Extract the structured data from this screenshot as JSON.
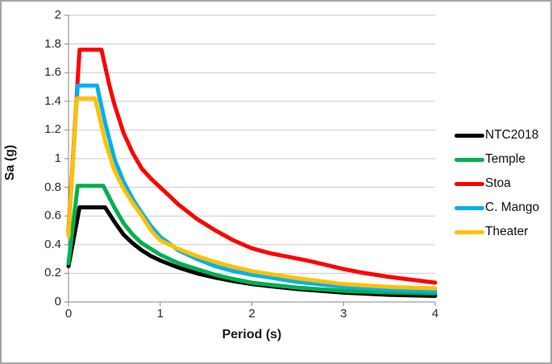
{
  "figure": {
    "background": "#ffffff",
    "border_color": "#a6a6a6",
    "plot_colors": {
      "gridline": "#c9c9c9",
      "axis": "#868686",
      "tick": "#868686",
      "text": "#2b2b2b"
    }
  },
  "chart_data": {
    "type": "line",
    "title": "",
    "xlabel": "Period (s)",
    "ylabel": "Sa (g)",
    "xlim": [
      0,
      4
    ],
    "ylim": [
      0,
      2
    ],
    "x_ticks": [
      "0",
      "1",
      "2",
      "3",
      "4"
    ],
    "x_tick_values": [
      0,
      1,
      2,
      3,
      4
    ],
    "y_ticks": [
      "0",
      "0.2",
      "0.4",
      "0.6",
      "0.8",
      "1",
      "1.2",
      "1.4",
      "1.6",
      "1.8",
      "2"
    ],
    "y_tick_values": [
      0,
      0.2,
      0.4,
      0.6,
      0.8,
      1,
      1.2,
      1.4,
      1.6,
      1.8,
      2
    ],
    "grid": "horizontal",
    "legend_position": "right",
    "line_width": 5,
    "series": [
      {
        "name": "NTC2018",
        "color": "#000000",
        "points": [
          [
            0,
            0.25
          ],
          [
            0.12,
            0.66
          ],
          [
            0.4,
            0.66
          ],
          [
            0.5,
            0.56
          ],
          [
            0.6,
            0.47
          ],
          [
            0.7,
            0.41
          ],
          [
            0.8,
            0.36
          ],
          [
            0.9,
            0.32
          ],
          [
            1.0,
            0.29
          ],
          [
            1.2,
            0.24
          ],
          [
            1.4,
            0.2
          ],
          [
            1.6,
            0.17
          ],
          [
            1.8,
            0.145
          ],
          [
            2.0,
            0.125
          ],
          [
            2.2,
            0.11
          ],
          [
            2.5,
            0.09
          ],
          [
            3.0,
            0.065
          ],
          [
            3.5,
            0.05
          ],
          [
            4.0,
            0.042
          ]
        ]
      },
      {
        "name": "Temple",
        "color": "#00B050",
        "points": [
          [
            0,
            0.27
          ],
          [
            0.1,
            0.81
          ],
          [
            0.38,
            0.81
          ],
          [
            0.5,
            0.66
          ],
          [
            0.6,
            0.55
          ],
          [
            0.7,
            0.47
          ],
          [
            0.8,
            0.41
          ],
          [
            0.9,
            0.37
          ],
          [
            1.0,
            0.33
          ],
          [
            1.2,
            0.27
          ],
          [
            1.4,
            0.23
          ],
          [
            1.6,
            0.19
          ],
          [
            1.8,
            0.16
          ],
          [
            2.0,
            0.135
          ],
          [
            2.2,
            0.12
          ],
          [
            2.5,
            0.1
          ],
          [
            3.0,
            0.078
          ],
          [
            3.5,
            0.067
          ],
          [
            4.0,
            0.06
          ]
        ]
      },
      {
        "name": "Stoa",
        "color": "#FF0000",
        "points": [
          [
            0,
            0.5
          ],
          [
            0.12,
            1.76
          ],
          [
            0.36,
            1.76
          ],
          [
            0.45,
            1.5
          ],
          [
            0.5,
            1.38
          ],
          [
            0.6,
            1.18
          ],
          [
            0.7,
            1.04
          ],
          [
            0.8,
            0.93
          ],
          [
            0.9,
            0.86
          ],
          [
            1.0,
            0.8
          ],
          [
            1.2,
            0.68
          ],
          [
            1.4,
            0.58
          ],
          [
            1.6,
            0.5
          ],
          [
            1.8,
            0.43
          ],
          [
            2.0,
            0.375
          ],
          [
            2.2,
            0.34
          ],
          [
            2.4,
            0.315
          ],
          [
            2.6,
            0.29
          ],
          [
            2.8,
            0.26
          ],
          [
            3.0,
            0.23
          ],
          [
            3.2,
            0.205
          ],
          [
            3.5,
            0.175
          ],
          [
            4.0,
            0.135
          ]
        ]
      },
      {
        "name": "C. Mango",
        "color": "#00B0F0",
        "points": [
          [
            0,
            0.48
          ],
          [
            0.1,
            1.51
          ],
          [
            0.31,
            1.51
          ],
          [
            0.4,
            1.25
          ],
          [
            0.5,
            1.0
          ],
          [
            0.6,
            0.84
          ],
          [
            0.7,
            0.72
          ],
          [
            0.8,
            0.62
          ],
          [
            0.9,
            0.53
          ],
          [
            1.0,
            0.455
          ],
          [
            1.2,
            0.36
          ],
          [
            1.4,
            0.3
          ],
          [
            1.6,
            0.25
          ],
          [
            1.8,
            0.215
          ],
          [
            2.0,
            0.19
          ],
          [
            2.2,
            0.17
          ],
          [
            2.5,
            0.14
          ],
          [
            3.0,
            0.105
          ],
          [
            3.5,
            0.085
          ],
          [
            4.0,
            0.075
          ]
        ]
      },
      {
        "name": "Theater",
        "color": "#FFC000",
        "points": [
          [
            0,
            0.46
          ],
          [
            0.09,
            1.42
          ],
          [
            0.29,
            1.42
          ],
          [
            0.4,
            1.12
          ],
          [
            0.5,
            0.92
          ],
          [
            0.6,
            0.79
          ],
          [
            0.7,
            0.69
          ],
          [
            0.8,
            0.6
          ],
          [
            0.9,
            0.5
          ],
          [
            1.0,
            0.43
          ],
          [
            1.2,
            0.37
          ],
          [
            1.4,
            0.32
          ],
          [
            1.6,
            0.28
          ],
          [
            1.8,
            0.245
          ],
          [
            2.0,
            0.215
          ],
          [
            2.2,
            0.195
          ],
          [
            2.5,
            0.165
          ],
          [
            3.0,
            0.125
          ],
          [
            3.5,
            0.105
          ],
          [
            4.0,
            0.095
          ]
        ]
      }
    ]
  }
}
